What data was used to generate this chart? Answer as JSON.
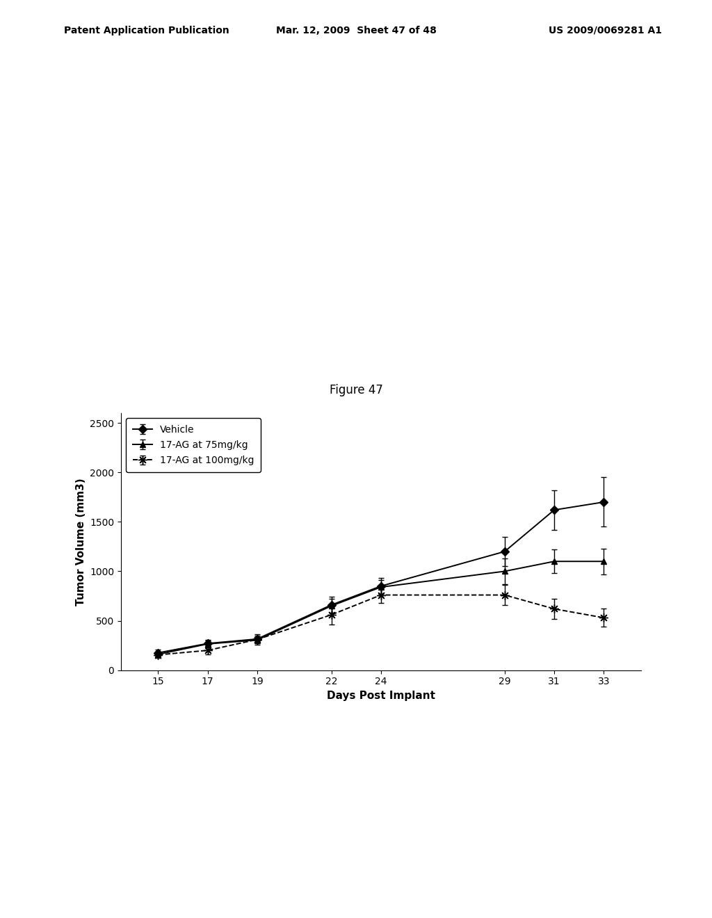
{
  "title": "Figure 47",
  "xlabel": "Days Post Implant",
  "ylabel": "Tumor Volume (mm3)",
  "x": [
    15,
    17,
    19,
    22,
    24,
    29,
    31,
    33
  ],
  "vehicle_y": [
    175,
    270,
    315,
    660,
    850,
    1200,
    1620,
    1700
  ],
  "vehicle_yerr": [
    30,
    40,
    35,
    80,
    80,
    150,
    200,
    250
  ],
  "ag75_y": [
    160,
    265,
    305,
    650,
    840,
    1000,
    1100,
    1100
  ],
  "ag75_yerr": [
    25,
    35,
    30,
    70,
    70,
    130,
    120,
    130
  ],
  "ag100_y": [
    155,
    200,
    310,
    560,
    760,
    760,
    620,
    530
  ],
  "ag100_yerr": [
    30,
    40,
    50,
    100,
    80,
    100,
    100,
    90
  ],
  "ylim": [
    0,
    2600
  ],
  "yticks": [
    0,
    500,
    1000,
    1500,
    2000,
    2500
  ],
  "xticks": [
    15,
    17,
    19,
    22,
    24,
    29,
    31,
    33
  ],
  "legend_labels": [
    "Vehicle",
    "17-AG at 75mg/kg",
    "17-AG at 100mg/kg"
  ],
  "line_color": "#000000",
  "background_color": "#ffffff",
  "header_left": "Patent Application Publication",
  "header_center": "Mar. 12, 2009  Sheet 47 of 48",
  "header_right": "US 2009/0069281 A1",
  "fig_title": "Figure 47",
  "title_fontsize": 12,
  "axis_fontsize": 11,
  "tick_fontsize": 10,
  "legend_fontsize": 10,
  "header_fontsize": 10
}
